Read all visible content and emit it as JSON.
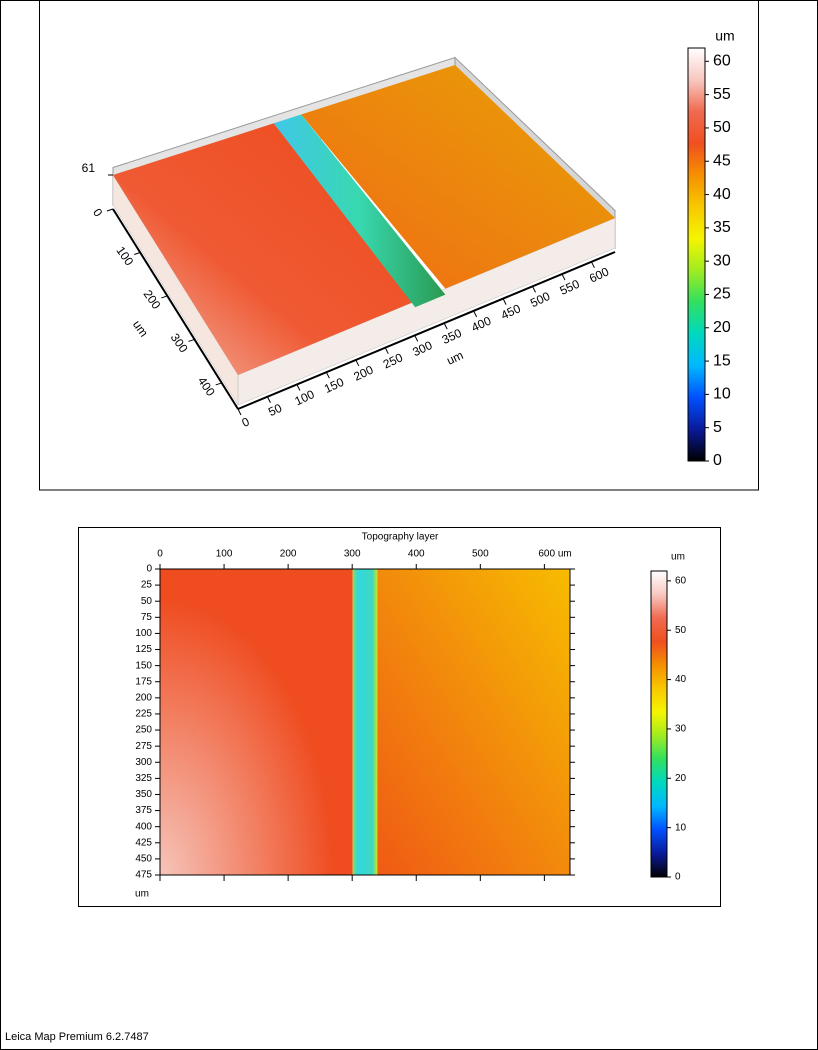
{
  "chart_data": [
    {
      "type": "surface",
      "xlim": [
        0,
        640
      ],
      "xticks": [
        0,
        50,
        100,
        150,
        200,
        250,
        300,
        350,
        400,
        450,
        500,
        550,
        600
      ],
      "xlabel": "um",
      "ylim": [
        0,
        460
      ],
      "yticks": [
        0,
        100,
        200,
        300,
        400
      ],
      "ylabel": "um",
      "zlim": [
        0,
        61
      ],
      "zticks": [
        61
      ],
      "colorbar": {
        "label": "um",
        "lim": [
          0,
          62
        ],
        "ticks": [
          0,
          5,
          10,
          15,
          20,
          25,
          30,
          35,
          40,
          45,
          50,
          55,
          60
        ],
        "colormap": [
          "#000000",
          "#0a1a9a",
          "#0050ff",
          "#00b8ff",
          "#00d8c0",
          "#30e060",
          "#a0ec20",
          "#f5f500",
          "#f8c800",
          "#f59000",
          "#f05020",
          "#f06a50",
          "#f7c8c0",
          "#ffffff"
        ]
      }
    },
    {
      "type": "heatmap",
      "title": "Topography layer",
      "xlim": [
        0,
        640
      ],
      "xticks": [
        0,
        100,
        200,
        300,
        400,
        500,
        {
          "value": 600,
          "label": "600 um"
        }
      ],
      "ylim": [
        0,
        475
      ],
      "yticks": [
        0,
        25,
        50,
        75,
        100,
        125,
        150,
        175,
        200,
        225,
        250,
        275,
        300,
        325,
        350,
        375,
        400,
        425,
        450,
        475
      ],
      "ylabel": "um",
      "colorbar": {
        "label": "um",
        "lim": [
          0,
          62
        ],
        "ticks": [
          0,
          10,
          20,
          30,
          40,
          50,
          60
        ],
        "colormap": [
          "#000000",
          "#0a1a9a",
          "#0050ff",
          "#00b8ff",
          "#00d8c0",
          "#30e060",
          "#a0ec20",
          "#f5f500",
          "#f8c800",
          "#f59000",
          "#f05020",
          "#f06a50",
          "#f7c8c0",
          "#ffffff"
        ]
      }
    }
  ],
  "footer": "Leica Map Premium 6.2.7487"
}
